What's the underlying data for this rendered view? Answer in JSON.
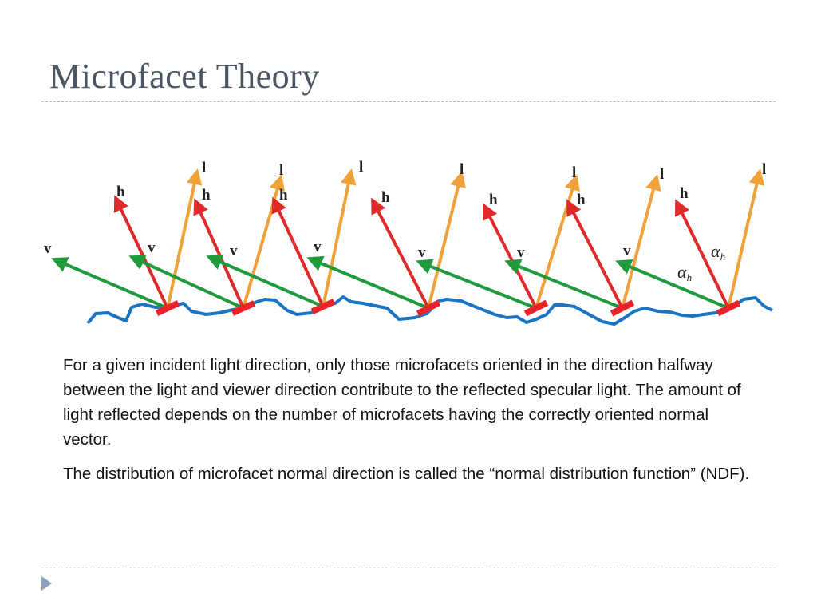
{
  "slide": {
    "title": "Microfacet Theory",
    "paragraphs": [
      "For a given incident light direction, only those microfacets oriented in the direction halfway between the light and viewer direction contribute to the reflected specular light. The amount of light reflected depends on the number of microfacets having the correctly oriented normal vector.",
      "The distribution of microfacet normal direction is called the “normal distribution function” (NDF)."
    ]
  },
  "figure": {
    "labels": {
      "light": "l",
      "half": "h",
      "view": "v"
    },
    "angle_symbol": "α",
    "angle_subscript": "h",
    "colors": {
      "light": "#f0a23a",
      "half": "#e02a2a",
      "view": "#1f9a3c",
      "surface": "#1a74c4",
      "facet": "#e8232b"
    }
  },
  "nav": {
    "icon": "next-slide-triangle-icon"
  }
}
